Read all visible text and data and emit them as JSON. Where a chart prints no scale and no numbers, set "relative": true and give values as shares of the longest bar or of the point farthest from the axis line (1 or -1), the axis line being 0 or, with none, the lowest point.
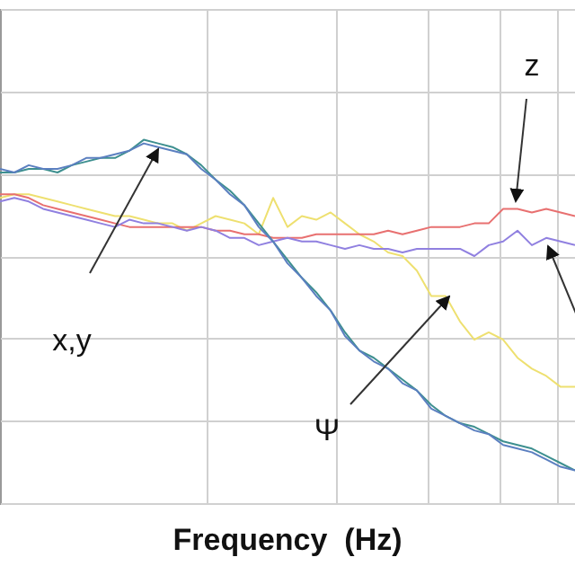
{
  "chart_data": {
    "type": "line",
    "relative": true,
    "xlabel": "Frequency  (Hz)",
    "grid": true,
    "categories": [
      null,
      null,
      null,
      null,
      null,
      null,
      null,
      null,
      null,
      null,
      null,
      null,
      null,
      null,
      null,
      null,
      null,
      null,
      null,
      null,
      null,
      null,
      null,
      null,
      null,
      null,
      null,
      null,
      null,
      null,
      null,
      null,
      null,
      null,
      null,
      null,
      null,
      null,
      null,
      null,
      null
    ],
    "annotations": [
      "z",
      "x,y",
      "Ψ"
    ],
    "series": [
      {
        "color": "#eee070",
        "values": [
          0.84,
          0.85,
          0.85,
          0.84,
          0.83,
          0.82,
          0.81,
          0.8,
          0.79,
          0.79,
          0.78,
          0.77,
          0.77,
          0.75,
          0.77,
          0.79,
          0.78,
          0.77,
          0.74,
          0.84,
          0.76,
          0.79,
          0.78,
          0.8,
          0.77,
          0.74,
          0.72,
          0.69,
          0.68,
          0.64,
          0.57,
          0.57,
          0.5,
          0.45,
          0.47,
          0.45,
          0.4,
          0.37,
          0.35,
          0.32,
          0.32
        ]
      },
      {
        "color": "#e87070",
        "values": [
          0.85,
          0.85,
          0.84,
          0.82,
          0.81,
          0.8,
          0.79,
          0.78,
          0.77,
          0.76,
          0.76,
          0.76,
          0.76,
          0.76,
          0.76,
          0.75,
          0.75,
          0.74,
          0.74,
          0.73,
          0.73,
          0.73,
          0.74,
          0.74,
          0.74,
          0.74,
          0.74,
          0.75,
          0.74,
          0.75,
          0.76,
          0.76,
          0.76,
          0.77,
          0.77,
          0.81,
          0.81,
          0.8,
          0.81,
          0.8,
          0.79
        ]
      },
      {
        "color": "#9080e0",
        "values": [
          0.83,
          0.84,
          0.83,
          0.81,
          0.8,
          0.79,
          0.78,
          0.77,
          0.76,
          0.78,
          0.77,
          0.77,
          0.76,
          0.75,
          0.76,
          0.75,
          0.73,
          0.73,
          0.71,
          0.72,
          0.73,
          0.72,
          0.72,
          0.71,
          0.7,
          0.71,
          0.7,
          0.7,
          0.69,
          0.7,
          0.7,
          0.7,
          0.7,
          0.68,
          0.71,
          0.72,
          0.75,
          0.71,
          0.73,
          0.72,
          0.71
        ]
      },
      {
        "color": "#3d8f8f",
        "values": [
          0.91,
          0.91,
          0.92,
          0.92,
          0.91,
          0.93,
          0.94,
          0.95,
          0.95,
          0.97,
          1,
          0.99,
          0.98,
          0.96,
          0.93,
          0.89,
          0.86,
          0.82,
          0.77,
          0.72,
          0.67,
          0.62,
          0.58,
          0.53,
          0.47,
          0.42,
          0.4,
          0.37,
          0.34,
          0.31,
          0.27,
          0.24,
          0.22,
          0.21,
          0.19,
          0.17,
          0.16,
          0.15,
          0.13,
          0.11,
          0.09
        ]
      },
      {
        "color": "#5b7fc0",
        "values": [
          0.92,
          0.91,
          0.93,
          0.92,
          0.92,
          0.93,
          0.95,
          0.95,
          0.96,
          0.97,
          0.99,
          0.98,
          0.97,
          0.96,
          0.92,
          0.89,
          0.85,
          0.82,
          0.76,
          0.72,
          0.66,
          0.62,
          0.57,
          0.53,
          0.46,
          0.42,
          0.39,
          0.37,
          0.33,
          0.31,
          0.26,
          0.24,
          0.22,
          0.2,
          0.19,
          0.16,
          0.15,
          0.14,
          0.12,
          0.1,
          0.09
        ]
      }
    ]
  }
}
